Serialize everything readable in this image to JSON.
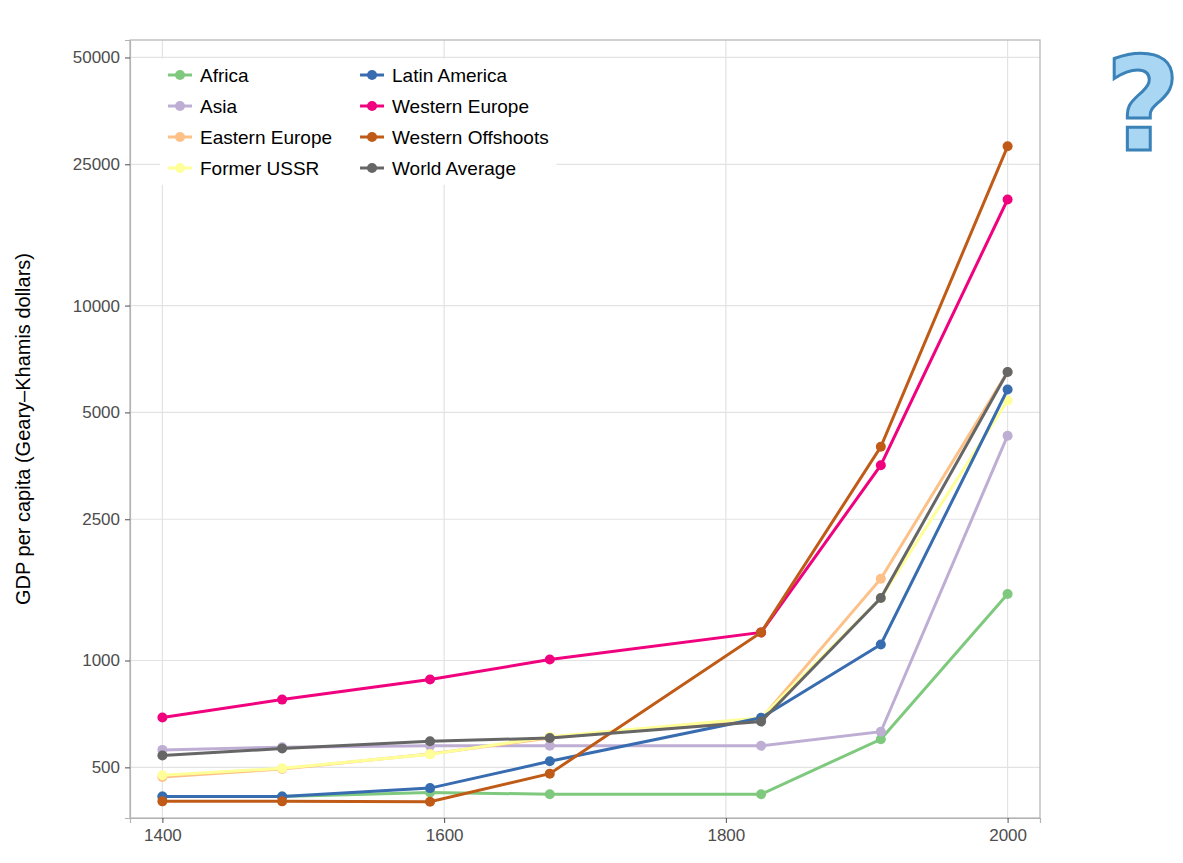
{
  "chart_data": {
    "type": "line",
    "y_label": "GDP per capita (Geary–Khamis dollars)",
    "annotation": "?",
    "log": "y",
    "grid": true,
    "legend": "top-left",
    "marker": "circle",
    "line_style": "solid",
    "xlim": [
      1377,
      2023
    ],
    "xticks": [
      1400,
      1600,
      1800,
      2000
    ],
    "ylim": [
      360,
      56000
    ],
    "yticks": [
      500,
      1000,
      2500,
      5000,
      10000,
      25000,
      50000
    ],
    "x": [
      1400,
      1485,
      1590,
      1675,
      1825,
      1910,
      2000
    ],
    "series": [
      {
        "name": "Africa",
        "color": "#7fc97f",
        "values": [
          414,
          414,
          425,
          420,
          420,
          600,
          1540
        ]
      },
      {
        "name": "Asia",
        "color": "#beaed4",
        "values": [
          560,
          570,
          575,
          575,
          575,
          630,
          4300
        ]
      },
      {
        "name": "Eastern Europe",
        "color": "#fdc086",
        "values": [
          470,
          495,
          545,
          605,
          685,
          1700,
          6500
        ]
      },
      {
        "name": "Former USSR",
        "color": "#ffff99",
        "values": [
          475,
          497,
          544,
          610,
          690,
          1500,
          5400
        ]
      },
      {
        "name": "Latin America",
        "color": "#386cb0",
        "values": [
          414,
          414,
          437,
          520,
          690,
          1110,
          5800
        ]
      },
      {
        "name": "Western Europe",
        "color": "#f0027f",
        "values": [
          691,
          776,
          884,
          1006,
          1200,
          3550,
          19900
        ]
      },
      {
        "name": "Western Offshoots",
        "color": "#bf5b17",
        "values": [
          401,
          401,
          400,
          480,
          1200,
          4000,
          28100
        ]
      },
      {
        "name": "World Average",
        "color": "#666666",
        "values": [
          540,
          565,
          592,
          605,
          673,
          1500,
          6500
        ]
      }
    ]
  }
}
